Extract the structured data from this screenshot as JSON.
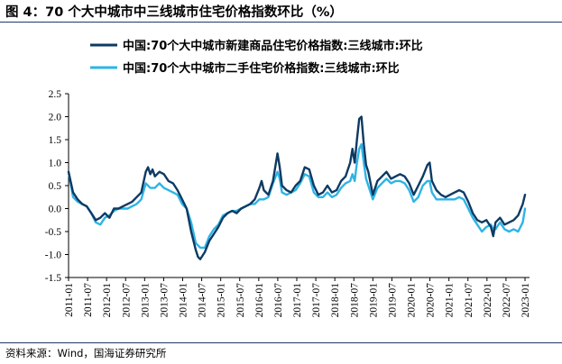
{
  "figure": {
    "title": "图 4：70 个大中城市中三线城市住宅价格指数环比（%）",
    "source": "资料来源：Wind，国海证券研究所"
  },
  "colors": {
    "new": "#0d3a63",
    "second": "#2eb4e6",
    "axis": "#000000"
  },
  "chart_data": {
    "type": "line",
    "title": "70 个大中城市中三线城市住宅价格指数环比（%）",
    "xlabel": "",
    "ylabel": "",
    "ylim": [
      -1.5,
      2.5
    ],
    "yticks": [
      2.5,
      2.0,
      1.5,
      1.0,
      0.5,
      0.0,
      -0.5,
      -1.0,
      -1.5
    ],
    "ytick_labels": [
      "2.5",
      "2.0",
      "1.5",
      "1.0",
      "0.5",
      "0.0",
      "-0.5",
      "-1.0",
      "-1.5"
    ],
    "x_start": "2011-01",
    "x_end": "2023-01",
    "xtick_labels": [
      "2011-01",
      "2011-07",
      "2012-01",
      "2012-07",
      "2013-01",
      "2013-07",
      "2014-01",
      "2014-07",
      "2015-01",
      "2015-07",
      "2016-01",
      "2016-07",
      "2017-01",
      "2017-07",
      "2018-01",
      "2018-07",
      "2019-01",
      "2019-07",
      "2020-01",
      "2020-07",
      "2021-01",
      "2021-07",
      "2022-01",
      "2022-07",
      "2023-01"
    ],
    "legend_position": "top-left",
    "series": [
      {
        "name": "中国:70个大中城市新建商品住宅价格指数:三线城市:环比",
        "color": "#0d3a63",
        "anchors": [
          [
            0,
            0.8
          ],
          [
            2,
            0.35
          ],
          [
            4,
            0.2
          ],
          [
            6,
            0.1
          ],
          [
            8,
            0.05
          ],
          [
            10,
            -0.1
          ],
          [
            12,
            -0.25
          ],
          [
            14,
            -0.2
          ],
          [
            16,
            -0.1
          ],
          [
            18,
            -0.2
          ],
          [
            20,
            0.0
          ],
          [
            22,
            0.0
          ],
          [
            24,
            0.05
          ],
          [
            26,
            0.1
          ],
          [
            28,
            0.15
          ],
          [
            30,
            0.25
          ],
          [
            32,
            0.35
          ],
          [
            34,
            0.8
          ],
          [
            35,
            0.9
          ],
          [
            36,
            0.75
          ],
          [
            37,
            0.85
          ],
          [
            38,
            0.7
          ],
          [
            40,
            0.8
          ],
          [
            42,
            0.75
          ],
          [
            44,
            0.6
          ],
          [
            46,
            0.55
          ],
          [
            48,
            0.4
          ],
          [
            50,
            0.2
          ],
          [
            52,
            0.0
          ],
          [
            54,
            -0.5
          ],
          [
            56,
            -0.9
          ],
          [
            57,
            -1.05
          ],
          [
            58,
            -1.1
          ],
          [
            60,
            -0.95
          ],
          [
            62,
            -0.7
          ],
          [
            64,
            -0.55
          ],
          [
            66,
            -0.4
          ],
          [
            68,
            -0.2
          ],
          [
            70,
            -0.1
          ],
          [
            72,
            -0.05
          ],
          [
            74,
            -0.1
          ],
          [
            76,
            0.0
          ],
          [
            78,
            0.05
          ],
          [
            80,
            0.1
          ],
          [
            82,
            0.2
          ],
          [
            84,
            0.45
          ],
          [
            85,
            0.6
          ],
          [
            86,
            0.4
          ],
          [
            88,
            0.3
          ],
          [
            90,
            0.6
          ],
          [
            92,
            1.2
          ],
          [
            93,
            0.9
          ],
          [
            94,
            0.5
          ],
          [
            96,
            0.4
          ],
          [
            98,
            0.35
          ],
          [
            100,
            0.5
          ],
          [
            102,
            0.6
          ],
          [
            104,
            0.9
          ],
          [
            106,
            0.85
          ],
          [
            108,
            0.5
          ],
          [
            110,
            0.3
          ],
          [
            112,
            0.35
          ],
          [
            114,
            0.5
          ],
          [
            116,
            0.35
          ],
          [
            118,
            0.4
          ],
          [
            120,
            0.6
          ],
          [
            122,
            0.7
          ],
          [
            124,
            1.0
          ],
          [
            125,
            1.3
          ],
          [
            126,
            1.0
          ],
          [
            127,
            1.5
          ],
          [
            128,
            1.95
          ],
          [
            129,
            2.0
          ],
          [
            130,
            1.4
          ],
          [
            131,
            0.95
          ],
          [
            132,
            0.8
          ],
          [
            134,
            0.3
          ],
          [
            136,
            0.6
          ],
          [
            138,
            0.7
          ],
          [
            140,
            0.8
          ],
          [
            142,
            0.65
          ],
          [
            144,
            0.7
          ],
          [
            146,
            0.75
          ],
          [
            148,
            0.7
          ],
          [
            150,
            0.55
          ],
          [
            152,
            0.3
          ],
          [
            154,
            0.5
          ],
          [
            156,
            0.7
          ],
          [
            158,
            0.95
          ],
          [
            159,
            1.0
          ],
          [
            160,
            0.6
          ],
          [
            162,
            0.4
          ],
          [
            164,
            0.3
          ],
          [
            166,
            0.25
          ],
          [
            168,
            0.3
          ],
          [
            170,
            0.35
          ],
          [
            172,
            0.4
          ],
          [
            174,
            0.35
          ],
          [
            176,
            0.15
          ],
          [
            178,
            -0.1
          ],
          [
            180,
            -0.25
          ],
          [
            182,
            -0.3
          ],
          [
            184,
            -0.25
          ],
          [
            186,
            -0.4
          ],
          [
            187,
            -0.6
          ],
          [
            188,
            -0.3
          ],
          [
            190,
            -0.2
          ],
          [
            192,
            -0.35
          ],
          [
            194,
            -0.3
          ],
          [
            196,
            -0.25
          ],
          [
            198,
            -0.15
          ],
          [
            200,
            0.1
          ],
          [
            201,
            0.3
          ]
        ]
      },
      {
        "name": "中国:70个大中城市二手住宅价格指数:三线城市:环比",
        "color": "#2eb4e6",
        "anchors": [
          [
            0,
            0.8
          ],
          [
            2,
            0.25
          ],
          [
            4,
            0.15
          ],
          [
            6,
            0.1
          ],
          [
            8,
            0.05
          ],
          [
            10,
            -0.1
          ],
          [
            12,
            -0.3
          ],
          [
            14,
            -0.35
          ],
          [
            16,
            -0.2
          ],
          [
            18,
            -0.15
          ],
          [
            20,
            -0.05
          ],
          [
            22,
            0.0
          ],
          [
            24,
            0.0
          ],
          [
            26,
            0.0
          ],
          [
            28,
            0.05
          ],
          [
            30,
            0.1
          ],
          [
            32,
            0.2
          ],
          [
            34,
            0.55
          ],
          [
            36,
            0.45
          ],
          [
            38,
            0.45
          ],
          [
            40,
            0.55
          ],
          [
            42,
            0.45
          ],
          [
            44,
            0.4
          ],
          [
            46,
            0.35
          ],
          [
            48,
            0.3
          ],
          [
            50,
            0.1
          ],
          [
            52,
            0.0
          ],
          [
            54,
            -0.3
          ],
          [
            56,
            -0.75
          ],
          [
            58,
            -0.85
          ],
          [
            60,
            -0.85
          ],
          [
            62,
            -0.6
          ],
          [
            64,
            -0.45
          ],
          [
            66,
            -0.35
          ],
          [
            68,
            -0.15
          ],
          [
            70,
            -0.1
          ],
          [
            72,
            -0.05
          ],
          [
            74,
            -0.05
          ],
          [
            76,
            0.0
          ],
          [
            78,
            0.05
          ],
          [
            80,
            0.1
          ],
          [
            82,
            0.1
          ],
          [
            84,
            0.2
          ],
          [
            86,
            0.2
          ],
          [
            88,
            0.25
          ],
          [
            90,
            0.55
          ],
          [
            92,
            0.8
          ],
          [
            93,
            0.65
          ],
          [
            94,
            0.35
          ],
          [
            96,
            0.3
          ],
          [
            98,
            0.35
          ],
          [
            100,
            0.4
          ],
          [
            102,
            0.55
          ],
          [
            104,
            0.75
          ],
          [
            106,
            0.7
          ],
          [
            108,
            0.35
          ],
          [
            110,
            0.25
          ],
          [
            112,
            0.25
          ],
          [
            114,
            0.35
          ],
          [
            116,
            0.25
          ],
          [
            118,
            0.3
          ],
          [
            120,
            0.45
          ],
          [
            122,
            0.55
          ],
          [
            124,
            0.6
          ],
          [
            125,
            0.75
          ],
          [
            126,
            0.6
          ],
          [
            127,
            1.0
          ],
          [
            128,
            1.3
          ],
          [
            129,
            1.4
          ],
          [
            130,
            1.0
          ],
          [
            131,
            0.65
          ],
          [
            132,
            0.5
          ],
          [
            134,
            0.2
          ],
          [
            136,
            0.45
          ],
          [
            138,
            0.55
          ],
          [
            140,
            0.65
          ],
          [
            142,
            0.55
          ],
          [
            144,
            0.6
          ],
          [
            146,
            0.6
          ],
          [
            148,
            0.55
          ],
          [
            150,
            0.4
          ],
          [
            152,
            0.15
          ],
          [
            154,
            0.25
          ],
          [
            156,
            0.5
          ],
          [
            158,
            0.6
          ],
          [
            159,
            0.6
          ],
          [
            160,
            0.35
          ],
          [
            162,
            0.2
          ],
          [
            164,
            0.2
          ],
          [
            166,
            0.2
          ],
          [
            168,
            0.2
          ],
          [
            170,
            0.2
          ],
          [
            172,
            0.25
          ],
          [
            174,
            0.2
          ],
          [
            176,
            0.0
          ],
          [
            178,
            -0.2
          ],
          [
            180,
            -0.35
          ],
          [
            182,
            -0.5
          ],
          [
            184,
            -0.4
          ],
          [
            186,
            -0.35
          ],
          [
            187,
            -0.45
          ],
          [
            188,
            -0.45
          ],
          [
            190,
            -0.3
          ],
          [
            192,
            -0.45
          ],
          [
            194,
            -0.5
          ],
          [
            196,
            -0.45
          ],
          [
            198,
            -0.5
          ],
          [
            200,
            -0.3
          ],
          [
            201,
            0.0
          ]
        ]
      }
    ]
  }
}
